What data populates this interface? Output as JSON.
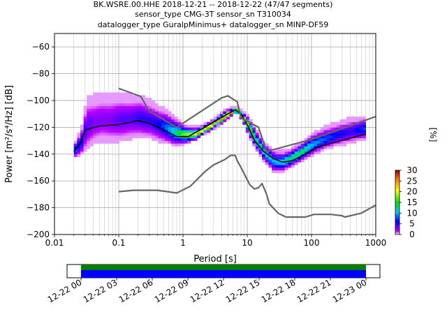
{
  "title_lines": [
    "BK.WSRE.00.HHE   2018-12-21 -- 2018-12-22  (47/47 segments)",
    "sensor_type CMG-3T sensor_sn T310034",
    "datalogger_type GuralpMinimus+ datalogger_sn MINP-DF59"
  ],
  "chart_data": [
    {
      "type": "heatmap",
      "title": "BK.WSRE.00.HHE   2018-12-21 -- 2018-12-22  (47/47 segments)",
      "xlabel": "Period [s]",
      "ylabel": "Power [m²/s⁴/Hz] [dB]",
      "xscale": "log",
      "xlim": [
        0.01,
        1000
      ],
      "ylim": [
        -200,
        -50
      ],
      "x_ticks": [
        0.01,
        0.1,
        1,
        10,
        100,
        1000
      ],
      "x_tick_labels": [
        "0.01",
        "0.1",
        "1",
        "10",
        "100",
        "1000"
      ],
      "y_ticks": [
        -200,
        -180,
        -160,
        -140,
        -120,
        -100,
        -80,
        -60
      ],
      "y_tick_labels": [
        "−200",
        "−180",
        "−160",
        "−140",
        "−120",
        "−100",
        "−80",
        "−60"
      ],
      "grid": true,
      "colorbar": {
        "label": "[%]",
        "range": [
          0,
          30
        ],
        "ticks": [
          0,
          5,
          10,
          15,
          20,
          25,
          30
        ],
        "colormap": "pqlx"
      },
      "series": [
        {
          "name": "",
          "role": "mode",
          "color": "#000000",
          "points": [
            [
              0.02,
              -138
            ],
            [
              0.025,
              -132
            ],
            [
              0.03,
              -122
            ],
            [
              0.05,
              -119
            ],
            [
              0.1,
              -118
            ],
            [
              0.2,
              -115
            ],
            [
              0.3,
              -117
            ],
            [
              0.5,
              -122
            ],
            [
              0.8,
              -127
            ],
            [
              1.2,
              -127
            ],
            [
              2,
              -121
            ],
            [
              3,
              -116
            ],
            [
              5,
              -110
            ],
            [
              6.5,
              -107
            ],
            [
              8,
              -110
            ],
            [
              10,
              -118
            ],
            [
              13,
              -130
            ],
            [
              18,
              -138
            ],
            [
              25,
              -143
            ],
            [
              35,
              -146
            ],
            [
              50,
              -145
            ],
            [
              80,
              -140
            ],
            [
              120,
              -135
            ],
            [
              200,
              -132
            ],
            [
              400,
              -128
            ],
            [
              700,
              -125
            ]
          ]
        },
        {
          "name": "",
          "role": "high-noise-model",
          "color": "#666666",
          "points": [
            [
              0.1,
              -91
            ],
            [
              0.17,
              -95
            ],
            [
              0.22,
              -97
            ],
            [
              0.3,
              -108
            ],
            [
              0.8,
              -120
            ],
            [
              4,
              -98
            ],
            [
              5,
              -96.5
            ],
            [
              7,
              -101
            ],
            [
              8,
              -113
            ],
            [
              15,
              -120
            ],
            [
              20,
              -138
            ],
            [
              100,
              -129
            ],
            [
              1000,
              -112
            ]
          ]
        },
        {
          "name": "",
          "role": "low-noise-model",
          "color": "#666666",
          "points": [
            [
              0.1,
              -168
            ],
            [
              0.17,
              -167
            ],
            [
              0.4,
              -167
            ],
            [
              0.8,
              -169
            ],
            [
              1.3,
              -164
            ],
            [
              2.2,
              -153
            ],
            [
              3,
              -148
            ],
            [
              4.5,
              -144
            ],
            [
              5.5,
              -141
            ],
            [
              6.5,
              -141
            ],
            [
              7,
              -145
            ],
            [
              8,
              -150
            ],
            [
              11,
              -163
            ],
            [
              13,
              -166
            ],
            [
              15,
              -165
            ],
            [
              17,
              -162
            ],
            [
              20,
              -170
            ],
            [
              22,
              -177
            ],
            [
              30,
              -184
            ],
            [
              40,
              -187
            ],
            [
              80,
              -187
            ],
            [
              110,
              -185
            ],
            [
              200,
              -185
            ],
            [
              300,
              -186
            ],
            [
              330,
              -187
            ],
            [
              600,
              -184
            ],
            [
              1000,
              -178
            ]
          ]
        }
      ],
      "density": {
        "description": "probability density of PSD values (percent)",
        "columns": [
          [
            0.02,
            -142,
            -130,
            8
          ],
          [
            0.025,
            -140,
            -120,
            6
          ],
          [
            0.03,
            -136,
            -98,
            4
          ],
          [
            0.04,
            -132,
            -96,
            3
          ],
          [
            0.05,
            -130,
            -95,
            3
          ],
          [
            0.07,
            -131,
            -95,
            3
          ],
          [
            0.1,
            -130,
            -95,
            4
          ],
          [
            0.15,
            -128,
            -96,
            4
          ],
          [
            0.2,
            -127,
            -96,
            5
          ],
          [
            0.3,
            -128,
            -100,
            5
          ],
          [
            0.4,
            -130,
            -104,
            6
          ],
          [
            0.5,
            -131,
            -106,
            8
          ],
          [
            0.7,
            -133,
            -112,
            12
          ],
          [
            1,
            -132,
            -118,
            18
          ],
          [
            1.5,
            -129,
            -120,
            20
          ],
          [
            2,
            -125,
            -118,
            22
          ],
          [
            3,
            -120,
            -113,
            24
          ],
          [
            4,
            -116,
            -108,
            25
          ],
          [
            5,
            -112,
            -106,
            25
          ],
          [
            6.5,
            -109,
            -105,
            25
          ],
          [
            8,
            -115,
            -108,
            22
          ],
          [
            10,
            -126,
            -112,
            18
          ],
          [
            13,
            -136,
            -122,
            14
          ],
          [
            18,
            -146,
            -132,
            12
          ],
          [
            25,
            -153,
            -137,
            10
          ],
          [
            35,
            -152,
            -138,
            12
          ],
          [
            50,
            -148,
            -135,
            14
          ],
          [
            70,
            -144,
            -130,
            14
          ],
          [
            100,
            -140,
            -124,
            10
          ],
          [
            150,
            -136,
            -120,
            8
          ],
          [
            250,
            -133,
            -116,
            6
          ],
          [
            400,
            -131,
            -113,
            5
          ],
          [
            700,
            -128,
            -112,
            8
          ]
        ]
      },
      "data_coverage": {
        "type": "timeline",
        "x_ticks": [
          "12-22 00",
          "12-22 03",
          "12-22 06",
          "12-22 09",
          "12-22 12",
          "12-22 15",
          "12-22 18",
          "12-22 21",
          "12-23 00"
        ],
        "bands": [
          {
            "color": "#008000"
          },
          {
            "color": "#0000ff"
          }
        ]
      }
    }
  ]
}
